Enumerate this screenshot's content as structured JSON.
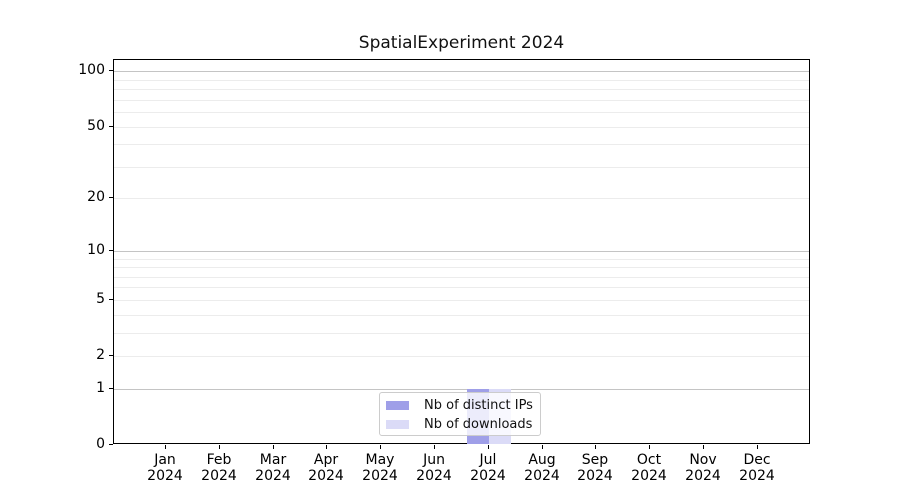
{
  "title": "SpatialExperiment 2024",
  "chart_data": {
    "type": "bar",
    "title": "SpatialExperiment 2024",
    "categories": [
      "Jan 2024",
      "Feb 2024",
      "Mar 2024",
      "Apr 2024",
      "May 2024",
      "Jun 2024",
      "Jul 2024",
      "Aug 2024",
      "Sep 2024",
      "Oct 2024",
      "Nov 2024",
      "Dec 2024"
    ],
    "series": [
      {
        "name": "Nb of distinct IPs",
        "color": "#9f9fe8",
        "values": [
          0,
          0,
          0,
          0,
          0,
          0,
          1,
          0,
          0,
          0,
          0,
          0
        ]
      },
      {
        "name": "Nb of downloads",
        "color": "#dbdbf7",
        "values": [
          0,
          0,
          0,
          0,
          0,
          0,
          1,
          0,
          0,
          0,
          0,
          0
        ]
      }
    ],
    "xlabel": "",
    "ylabel": "",
    "y_axis": {
      "scale": "log1p",
      "tick_values": [
        0,
        1,
        2,
        5,
        10,
        20,
        50,
        100
      ],
      "major_gridlines": [
        1,
        10,
        100
      ],
      "minor_gridlines": [
        2,
        3,
        4,
        5,
        6,
        7,
        8,
        9,
        20,
        30,
        40,
        50,
        60,
        70,
        80,
        90
      ],
      "top_value": 115
    },
    "grid": "horizontal",
    "legend_position": "bottom-center"
  },
  "legend": {
    "items": [
      {
        "label": "Nb of distinct IPs",
        "color": "#9f9fe8"
      },
      {
        "label": "Nb of downloads",
        "color": "#dbdbf7"
      }
    ]
  },
  "colors": {
    "bar_distinct_ips": "#9f9fe8",
    "bar_downloads": "#dbdbf7",
    "major_grid": "#c4c4c4",
    "minor_grid": "#ececec",
    "spine": "#000000",
    "background": "#ffffff"
  }
}
